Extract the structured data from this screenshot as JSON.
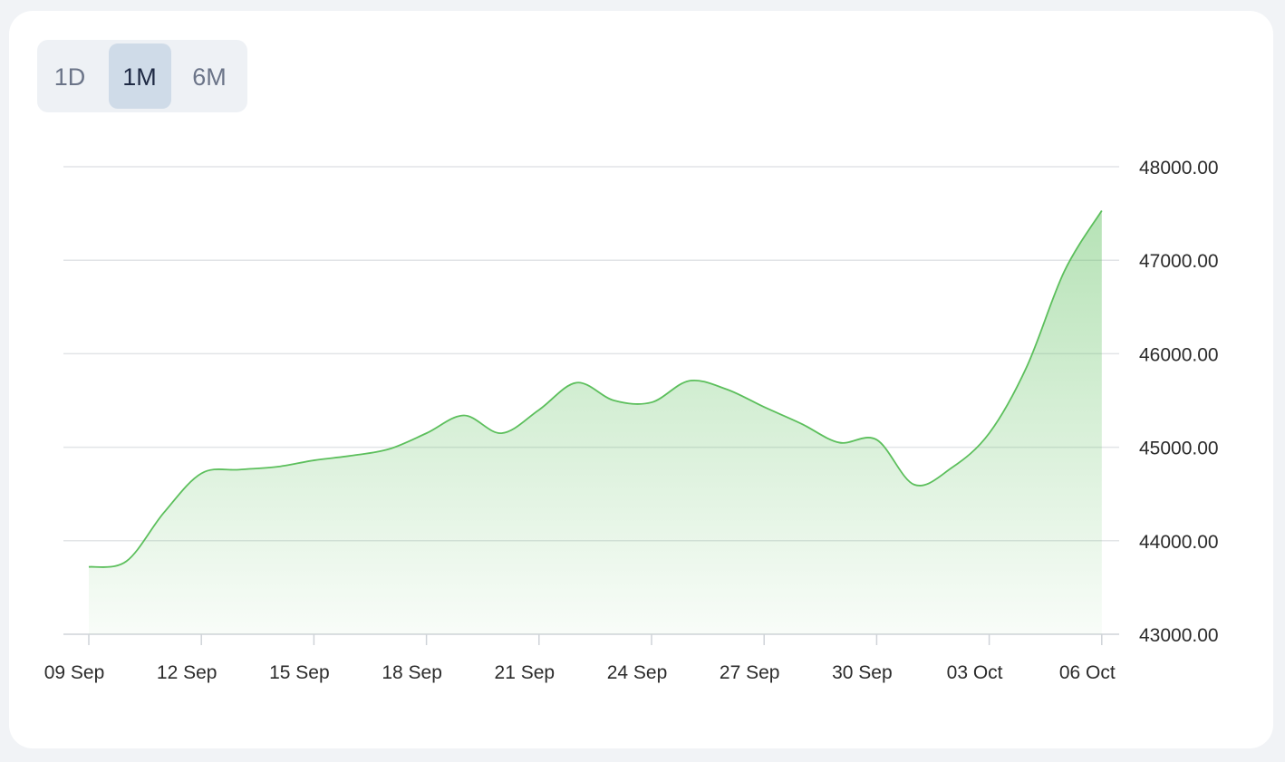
{
  "ranges": [
    "1D",
    "1M",
    "6M"
  ],
  "active_range": "1M",
  "chart_data": {
    "type": "area",
    "color": "#5cbf5c",
    "x": [
      "09 Sep",
      "10 Sep",
      "11 Sep",
      "12 Sep",
      "13 Sep",
      "14 Sep",
      "15 Sep",
      "16 Sep",
      "17 Sep",
      "18 Sep",
      "19 Sep",
      "20 Sep",
      "21 Sep",
      "22 Sep",
      "23 Sep",
      "24 Sep",
      "25 Sep",
      "26 Sep",
      "27 Sep",
      "28 Sep",
      "29 Sep",
      "30 Sep",
      "01 Oct",
      "02 Oct",
      "03 Oct",
      "04 Oct",
      "05 Oct",
      "06 Oct"
    ],
    "values": [
      43720,
      43780,
      44300,
      44720,
      44760,
      44790,
      44860,
      44910,
      44980,
      45150,
      45340,
      45150,
      45400,
      45690,
      45500,
      45480,
      45710,
      45620,
      45430,
      45250,
      45050,
      45080,
      44600,
      44780,
      45150,
      45860,
      46880,
      47530
    ],
    "xticks": [
      "09 Sep",
      "12 Sep",
      "15 Sep",
      "18 Sep",
      "21 Sep",
      "24 Sep",
      "27 Sep",
      "30 Sep",
      "03 Oct",
      "06 Oct"
    ],
    "ylim": [
      43000,
      48000
    ],
    "yticks": [
      {
        "value": 43000,
        "label": "43000.00"
      },
      {
        "value": 44000,
        "label": "44000.00"
      },
      {
        "value": 45000,
        "label": "45000.00"
      },
      {
        "value": 46000,
        "label": "46000.00"
      },
      {
        "value": 47000,
        "label": "47000.00"
      },
      {
        "value": 48000,
        "label": "48000.00"
      }
    ],
    "grid": true
  }
}
